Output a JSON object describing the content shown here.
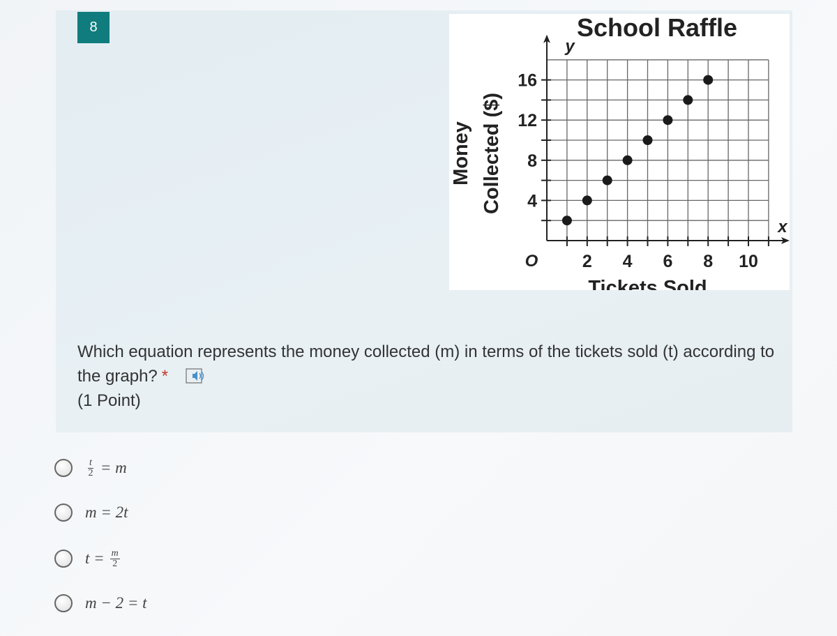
{
  "question_number": "8",
  "question": {
    "text": "Which equation represents the money collected (m) in terms of the tickets sold (t) according to the graph?",
    "required_mark": "*",
    "points": "(1 Point)",
    "icon": "immersive-reader-speaker-icon"
  },
  "options": [
    {
      "lhs_num": "t",
      "lhs_den": "2",
      "rhs": "= m"
    },
    {
      "text": "m = 2t"
    },
    {
      "lhs": "t =",
      "rhs_num": "m",
      "rhs_den": "2"
    },
    {
      "text": "m − 2 = t"
    }
  ],
  "chart_data": {
    "type": "scatter",
    "title": "School Raffle",
    "xlabel": "Tickets Sold",
    "ylabel_line1": "Money",
    "ylabel_line2": "Collected ($)",
    "x_axis_letter": "x",
    "y_axis_letter": "y",
    "origin_label": "O",
    "xlim": [
      0,
      11
    ],
    "ylim": [
      0,
      18
    ],
    "x_ticks": [
      2,
      4,
      6,
      8,
      10
    ],
    "y_ticks": [
      4,
      8,
      12,
      16
    ],
    "grid": true,
    "x": [
      1,
      2,
      3,
      4,
      5,
      6,
      7,
      8
    ],
    "y": [
      2,
      4,
      6,
      8,
      10,
      12,
      14,
      16
    ],
    "point_color": "#1a1a1a"
  }
}
